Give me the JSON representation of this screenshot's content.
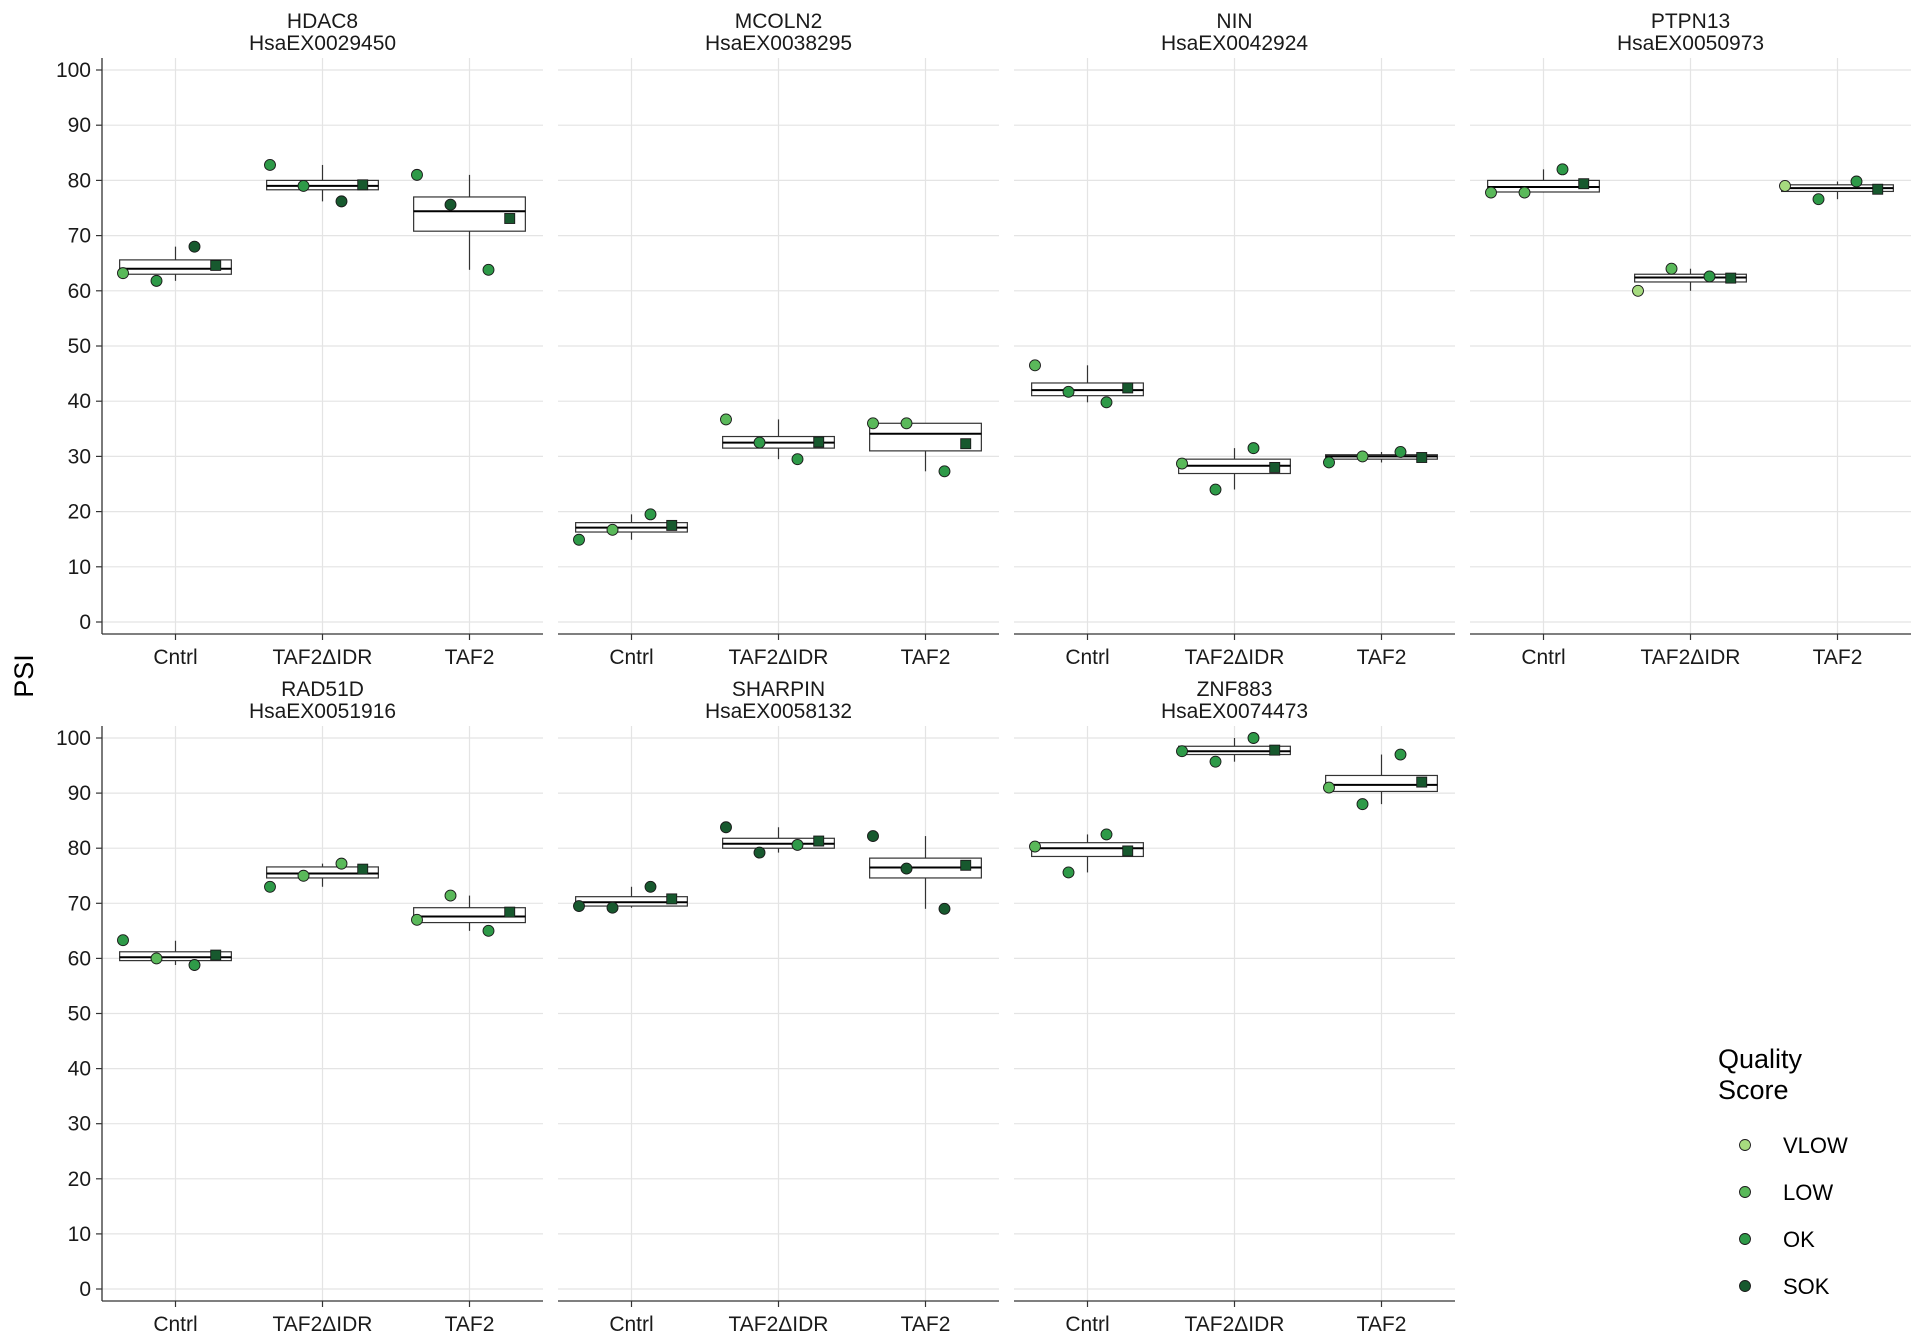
{
  "chart_data": {
    "type": "box",
    "ylabel": "PSI",
    "ylim": [
      0,
      100
    ],
    "yticks": [
      "0",
      "10",
      "20",
      "30",
      "40",
      "50",
      "60",
      "70",
      "80",
      "90",
      "100"
    ],
    "categories": [
      "Cntrl",
      "TAF2ΔIDR",
      "TAF2"
    ],
    "grid": true,
    "legend": {
      "title_lines": [
        "Quality",
        "Score"
      ],
      "placement": "right",
      "items": [
        {
          "label": "VLOW",
          "color": "#a6db7f"
        },
        {
          "label": "LOW",
          "color": "#5ab95a"
        },
        {
          "label": "OK",
          "color": "#2e9a48"
        },
        {
          "label": "SOK",
          "color": "#17592e"
        }
      ]
    },
    "mean_marker_color": "#17592e",
    "panels": [
      {
        "gene": "HDAC8",
        "event": "HsaEX0029450",
        "groups": [
          {
            "category": "Cntrl",
            "box": {
              "low": 61.8,
              "q1": 63.0,
              "median": 64.0,
              "q3": 65.6,
              "high": 68.0
            },
            "mean": 64.6,
            "points": [
              {
                "value": 63.2,
                "quality": "LOW"
              },
              {
                "value": 61.8,
                "quality": "OK"
              },
              {
                "value": 68.0,
                "quality": "SOK"
              }
            ]
          },
          {
            "category": "TAF2ΔIDR",
            "box": {
              "low": 76.2,
              "q1": 78.3,
              "median": 79.0,
              "q3": 80.0,
              "high": 82.8
            },
            "mean": 79.2,
            "points": [
              {
                "value": 82.8,
                "quality": "OK"
              },
              {
                "value": 79.0,
                "quality": "OK"
              },
              {
                "value": 76.2,
                "quality": "SOK"
              }
            ]
          },
          {
            "category": "TAF2",
            "box": {
              "low": 63.8,
              "q1": 70.8,
              "median": 74.4,
              "q3": 77.0,
              "high": 81.0
            },
            "mean": 73.1,
            "points": [
              {
                "value": 81.0,
                "quality": "OK"
              },
              {
                "value": 75.6,
                "quality": "SOK"
              },
              {
                "value": 63.8,
                "quality": "OK"
              }
            ]
          }
        ]
      },
      {
        "gene": "MCOLN2",
        "event": "HsaEX0038295",
        "groups": [
          {
            "category": "Cntrl",
            "box": {
              "low": 14.9,
              "q1": 16.3,
              "median": 17.1,
              "q3": 18.0,
              "high": 19.5
            },
            "mean": 17.5,
            "points": [
              {
                "value": 14.9,
                "quality": "OK"
              },
              {
                "value": 16.7,
                "quality": "LOW"
              },
              {
                "value": 19.5,
                "quality": "OK"
              }
            ]
          },
          {
            "category": "TAF2ΔIDR",
            "box": {
              "low": 29.5,
              "q1": 31.5,
              "median": 32.5,
              "q3": 33.6,
              "high": 36.7
            },
            "mean": 32.6,
            "points": [
              {
                "value": 36.7,
                "quality": "LOW"
              },
              {
                "value": 32.5,
                "quality": "OK"
              },
              {
                "value": 29.5,
                "quality": "OK"
              }
            ]
          },
          {
            "category": "TAF2",
            "box": {
              "low": 27.3,
              "q1": 31.0,
              "median": 34.1,
              "q3": 36.0,
              "high": 36.0
            },
            "mean": 32.3,
            "points": [
              {
                "value": 36.0,
                "quality": "LOW"
              },
              {
                "value": 36.0,
                "quality": "LOW"
              },
              {
                "value": 27.3,
                "quality": "OK"
              }
            ]
          }
        ]
      },
      {
        "gene": "NIN",
        "event": "HsaEX0042924",
        "groups": [
          {
            "category": "Cntrl",
            "box": {
              "low": 39.8,
              "q1": 41.0,
              "median": 42.0,
              "q3": 43.3,
              "high": 46.5
            },
            "mean": 42.4,
            "points": [
              {
                "value": 46.5,
                "quality": "LOW"
              },
              {
                "value": 41.7,
                "quality": "OK"
              },
              {
                "value": 39.8,
                "quality": "OK"
              }
            ]
          },
          {
            "category": "TAF2ΔIDR",
            "box": {
              "low": 24.0,
              "q1": 26.9,
              "median": 28.3,
              "q3": 29.5,
              "high": 31.5
            },
            "mean": 28.0,
            "points": [
              {
                "value": 28.7,
                "quality": "LOW"
              },
              {
                "value": 24.0,
                "quality": "OK"
              },
              {
                "value": 31.5,
                "quality": "OK"
              }
            ]
          },
          {
            "category": "TAF2",
            "box": {
              "low": 28.9,
              "q1": 29.5,
              "median": 30.0,
              "q3": 30.3,
              "high": 30.8
            },
            "mean": 29.8,
            "points": [
              {
                "value": 28.9,
                "quality": "OK"
              },
              {
                "value": 30.0,
                "quality": "LOW"
              },
              {
                "value": 30.8,
                "quality": "OK"
              }
            ]
          }
        ]
      },
      {
        "gene": "PTPN13",
        "event": "HsaEX0050973",
        "groups": [
          {
            "category": "Cntrl",
            "box": {
              "low": 77.8,
              "q1": 77.9,
              "median": 78.8,
              "q3": 80.0,
              "high": 82.0
            },
            "mean": 79.4,
            "points": [
              {
                "value": 77.8,
                "quality": "LOW"
              },
              {
                "value": 77.8,
                "quality": "LOW"
              },
              {
                "value": 82.0,
                "quality": "OK"
              }
            ]
          },
          {
            "category": "TAF2ΔIDR",
            "box": {
              "low": 60.0,
              "q1": 61.6,
              "median": 62.4,
              "q3": 63.0,
              "high": 64.0
            },
            "mean": 62.3,
            "points": [
              {
                "value": 60.0,
                "quality": "VLOW"
              },
              {
                "value": 64.0,
                "quality": "LOW"
              },
              {
                "value": 62.6,
                "quality": "OK"
              }
            ]
          },
          {
            "category": "TAF2",
            "box": {
              "low": 76.6,
              "q1": 78.0,
              "median": 78.6,
              "q3": 79.2,
              "high": 79.8
            },
            "mean": 78.4,
            "points": [
              {
                "value": 79.0,
                "quality": "VLOW"
              },
              {
                "value": 76.6,
                "quality": "OK"
              },
              {
                "value": 79.8,
                "quality": "OK"
              }
            ]
          }
        ]
      },
      {
        "gene": "RAD51D",
        "event": "HsaEX0051916",
        "groups": [
          {
            "category": "Cntrl",
            "box": {
              "low": 58.8,
              "q1": 59.6,
              "median": 60.2,
              "q3": 61.2,
              "high": 63.2
            },
            "mean": 60.6,
            "points": [
              {
                "value": 63.3,
                "quality": "OK"
              },
              {
                "value": 60.0,
                "quality": "LOW"
              },
              {
                "value": 58.8,
                "quality": "OK"
              }
            ]
          },
          {
            "category": "TAF2ΔIDR",
            "box": {
              "low": 73.0,
              "q1": 74.6,
              "median": 75.4,
              "q3": 76.6,
              "high": 77.2
            },
            "mean": 76.2,
            "points": [
              {
                "value": 73.0,
                "quality": "OK"
              },
              {
                "value": 75.0,
                "quality": "LOW"
              },
              {
                "value": 77.2,
                "quality": "LOW"
              }
            ]
          },
          {
            "category": "TAF2",
            "box": {
              "low": 65.0,
              "q1": 66.5,
              "median": 67.6,
              "q3": 69.2,
              "high": 71.4
            },
            "mean": 68.4,
            "points": [
              {
                "value": 67.0,
                "quality": "LOW"
              },
              {
                "value": 71.4,
                "quality": "LOW"
              },
              {
                "value": 65.0,
                "quality": "OK"
              }
            ]
          }
        ]
      },
      {
        "gene": "SHARPIN",
        "event": "HsaEX0058132",
        "groups": [
          {
            "category": "Cntrl",
            "box": {
              "low": 69.2,
              "q1": 69.5,
              "median": 70.2,
              "q3": 71.2,
              "high": 73.0
            },
            "mean": 70.8,
            "points": [
              {
                "value": 69.5,
                "quality": "SOK"
              },
              {
                "value": 69.2,
                "quality": "SOK"
              },
              {
                "value": 73.0,
                "quality": "SOK"
              }
            ]
          },
          {
            "category": "TAF2ΔIDR",
            "box": {
              "low": 79.2,
              "q1": 80.0,
              "median": 80.8,
              "q3": 81.8,
              "high": 83.8
            },
            "mean": 81.3,
            "points": [
              {
                "value": 83.8,
                "quality": "SOK"
              },
              {
                "value": 79.2,
                "quality": "SOK"
              },
              {
                "value": 80.6,
                "quality": "OK"
              }
            ]
          },
          {
            "category": "TAF2",
            "box": {
              "low": 69.0,
              "q1": 74.6,
              "median": 76.5,
              "q3": 78.2,
              "high": 82.2
            },
            "mean": 76.9,
            "points": [
              {
                "value": 82.2,
                "quality": "SOK"
              },
              {
                "value": 76.3,
                "quality": "SOK"
              },
              {
                "value": 69.0,
                "quality": "SOK"
              }
            ]
          }
        ]
      },
      {
        "gene": "ZNF883",
        "event": "HsaEX0074473",
        "groups": [
          {
            "category": "Cntrl",
            "box": {
              "low": 75.6,
              "q1": 78.5,
              "median": 80.0,
              "q3": 81.0,
              "high": 82.5
            },
            "mean": 79.5,
            "points": [
              {
                "value": 80.3,
                "quality": "LOW"
              },
              {
                "value": 75.6,
                "quality": "OK"
              },
              {
                "value": 82.5,
                "quality": "OK"
              }
            ]
          },
          {
            "category": "TAF2ΔIDR",
            "box": {
              "low": 95.7,
              "q1": 97.0,
              "median": 97.6,
              "q3": 98.5,
              "high": 100.0
            },
            "mean": 97.8,
            "points": [
              {
                "value": 97.6,
                "quality": "OK"
              },
              {
                "value": 95.7,
                "quality": "OK"
              },
              {
                "value": 100.0,
                "quality": "OK"
              }
            ]
          },
          {
            "category": "TAF2",
            "box": {
              "low": 88.0,
              "q1": 90.3,
              "median": 91.5,
              "q3": 93.2,
              "high": 97.0
            },
            "mean": 92.0,
            "points": [
              {
                "value": 91.0,
                "quality": "LOW"
              },
              {
                "value": 88.0,
                "quality": "OK"
              },
              {
                "value": 97.0,
                "quality": "OK"
              }
            ]
          }
        ]
      }
    ]
  }
}
